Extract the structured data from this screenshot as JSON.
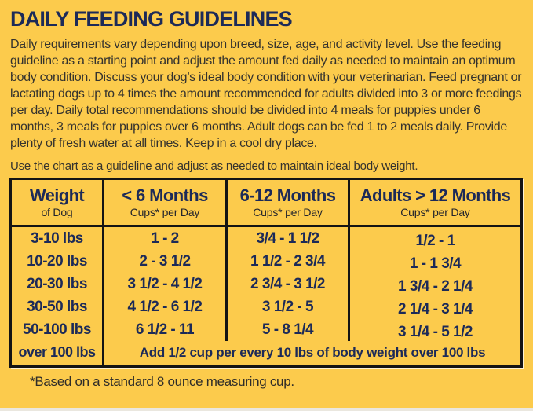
{
  "colors": {
    "background": "#FCCB4C",
    "heading_navy": "#1C2A58",
    "body_text": "#35332E",
    "table_border": "#141414",
    "bottom_strip": "#EAE7DF"
  },
  "header": {
    "title": "DAILY FEEDING GUIDELINES"
  },
  "intro": {
    "text": "Daily requirements vary depending upon breed, size, age, and activity level. Use the feeding guideline as a starting point and adjust the amount fed daily as needed to maintain an optimum body condition. Discuss your dog’s ideal body condition with your veterinarian. Feed pregnant or lactating dogs up to 4 times the amount recommended for adults divided into 3 or more feedings per day. Daily total recommendations should be divided into 4 meals for puppies under 6 months, 3 meals for puppies over 6 months. Adult dogs can be fed 1 to 2 meals daily. Provide plenty of fresh water at all times. Keep in a cool dry place."
  },
  "note": {
    "text": "Use the chart as a guideline and adjust as needed to maintain ideal body weight."
  },
  "table": {
    "columns": [
      {
        "title": "Weight",
        "subtitle": "of Dog"
      },
      {
        "title": "< 6 Months",
        "subtitle": "Cups* per Day"
      },
      {
        "title": "6-12 Months",
        "subtitle": "Cups* per Day"
      },
      {
        "title": "Adults > 12 Months",
        "subtitle": "Cups* per Day"
      }
    ],
    "rows": [
      {
        "weight": "3-10 lbs",
        "under_6_months": "1 - 2",
        "months_6_12": "3/4 - 1 1/2",
        "adults": "1/2 - 1"
      },
      {
        "weight": "10-20 lbs",
        "under_6_months": "2 - 3 1/2",
        "months_6_12": "1 1/2 - 2 3/4",
        "adults": "1 - 1 3/4"
      },
      {
        "weight": "20-30 lbs",
        "under_6_months": "3 1/2 - 4 1/2",
        "months_6_12": "2 3/4 - 3 1/2",
        "adults": "1 3/4 - 2 1/4"
      },
      {
        "weight": "30-50 lbs",
        "under_6_months": "4 1/2 - 6 1/2",
        "months_6_12": "3 1/2 - 5",
        "adults": "2 1/4 - 3 1/4"
      },
      {
        "weight": "50-100 lbs",
        "under_6_months": "6 1/2 - 11",
        "months_6_12": "5 - 8 1/4",
        "adults": "3 1/4 - 5 1/2"
      }
    ],
    "over_row": {
      "weight": "over 100 lbs",
      "note": "Add 1/2 cup per every 10 lbs of body weight over 100 lbs"
    }
  },
  "footnote": {
    "text": "*Based on a standard 8 ounce measuring cup."
  },
  "chart_data": {
    "type": "table",
    "title": "DAILY FEEDING GUIDELINES",
    "columns": [
      "Weight of Dog",
      "< 6 Months Cups* per Day",
      "6-12 Months Cups* per Day",
      "Adults > 12 Months Cups* per Day"
    ],
    "rows": [
      [
        "3-10 lbs",
        "1 - 2",
        "3/4 - 1 1/2",
        "1/2 - 1"
      ],
      [
        "10-20 lbs",
        "2 - 3 1/2",
        "1 1/2 - 2 3/4",
        "1 - 1 3/4"
      ],
      [
        "20-30 lbs",
        "3 1/2 - 4 1/2",
        "2 3/4 - 3 1/2",
        "1 3/4 - 2 1/4"
      ],
      [
        "30-50 lbs",
        "4 1/2 - 6 1/2",
        "3 1/2 - 5",
        "2 1/4 - 3 1/4"
      ],
      [
        "50-100 lbs",
        "6 1/2 - 11",
        "5 - 8 1/4",
        "3 1/4 - 5 1/2"
      ],
      [
        "over 100 lbs",
        "Add 1/2 cup per every 10 lbs of body weight over 100 lbs",
        "",
        ""
      ]
    ]
  }
}
